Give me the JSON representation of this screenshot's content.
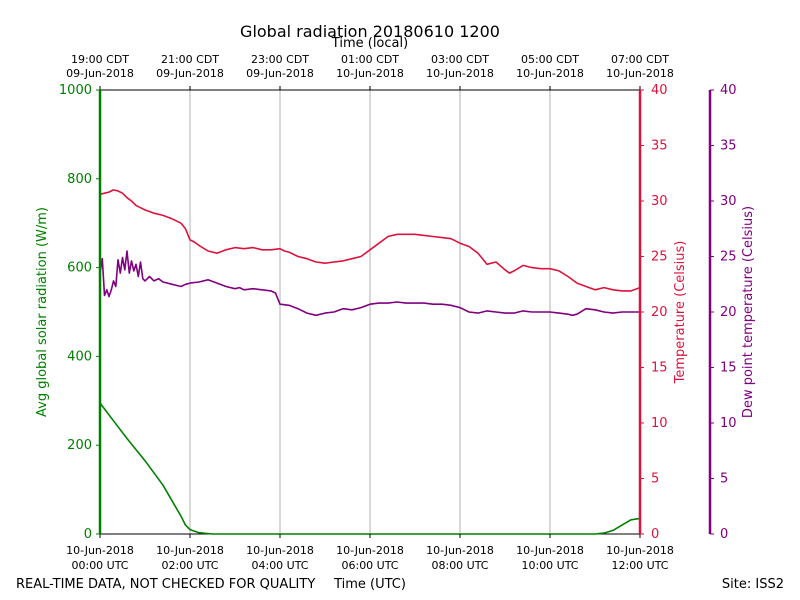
{
  "chart_data": {
    "type": "line",
    "title": "Global radiation 20180610 1200",
    "top_axis_label": "Time (local)",
    "xlabel": "Time (UTC)",
    "footer_left": "REAL-TIME DATA, NOT CHECKED FOR QUALITY",
    "footer_right": "Site: ISS2",
    "x_range_hours_utc": [
      0,
      12
    ],
    "bottom_ticks": [
      {
        "h": 0,
        "line1": "10-Jun-2018",
        "line2": "00:00 UTC"
      },
      {
        "h": 2,
        "line1": "10-Jun-2018",
        "line2": "02:00 UTC"
      },
      {
        "h": 4,
        "line1": "10-Jun-2018",
        "line2": "04:00 UTC"
      },
      {
        "h": 6,
        "line1": "10-Jun-2018",
        "line2": "06:00 UTC"
      },
      {
        "h": 8,
        "line1": "10-Jun-2018",
        "line2": "08:00 UTC"
      },
      {
        "h": 10,
        "line1": "10-Jun-2018",
        "line2": "10:00 UTC"
      },
      {
        "h": 12,
        "line1": "10-Jun-2018",
        "line2": "12:00 UTC"
      }
    ],
    "top_ticks": [
      {
        "h": 0,
        "line1": "19:00 CDT",
        "line2": "09-Jun-2018"
      },
      {
        "h": 2,
        "line1": "21:00 CDT",
        "line2": "09-Jun-2018"
      },
      {
        "h": 4,
        "line1": "23:00 CDT",
        "line2": "09-Jun-2018"
      },
      {
        "h": 6,
        "line1": "01:00 CDT",
        "line2": "10-Jun-2018"
      },
      {
        "h": 8,
        "line1": "03:00 CDT",
        "line2": "10-Jun-2018"
      },
      {
        "h": 10,
        "line1": "05:00 CDT",
        "line2": "10-Jun-2018"
      },
      {
        "h": 12,
        "line1": "07:00 CDT",
        "line2": "10-Jun-2018"
      }
    ],
    "axes": {
      "left": {
        "label": "Avg global solar radiation (W/m)",
        "ylim": [
          0,
          1000
        ],
        "ticks": [
          0,
          200,
          400,
          600,
          800,
          1000
        ],
        "color": "#008000"
      },
      "right1": {
        "label": "Temperature (Celsius)",
        "ylim": [
          0,
          40
        ],
        "ticks": [
          0,
          5,
          10,
          15,
          20,
          25,
          30,
          35,
          40
        ],
        "color": "#dc143c"
      },
      "right2": {
        "label": "Dew point temperature (Celsius)",
        "ylim": [
          0,
          40
        ],
        "ticks": [
          0,
          5,
          10,
          15,
          20,
          25,
          30,
          35,
          40
        ],
        "color": "#800080"
      }
    },
    "series": [
      {
        "name": "Avg global solar radiation",
        "axis": "left",
        "color": "#008000",
        "x": [
          0,
          0.3,
          0.6,
          1.0,
          1.4,
          1.6,
          1.8,
          1.9,
          2.0,
          2.2,
          2.5,
          4,
          6,
          8,
          10,
          11.0,
          11.2,
          11.4,
          11.6,
          11.8,
          12.0
        ],
        "values": [
          295,
          255,
          215,
          165,
          110,
          75,
          40,
          20,
          10,
          3,
          0,
          0,
          0,
          0,
          0,
          0,
          2,
          8,
          20,
          32,
          35
        ]
      },
      {
        "name": "Temperature",
        "axis": "right1",
        "color": "#dc143c",
        "x": [
          0,
          0.1,
          0.2,
          0.3,
          0.4,
          0.5,
          0.6,
          0.7,
          0.8,
          0.9,
          1.0,
          1.2,
          1.4,
          1.6,
          1.8,
          1.9,
          2.0,
          2.1,
          2.2,
          2.4,
          2.6,
          2.8,
          3.0,
          3.2,
          3.4,
          3.6,
          3.8,
          4.0,
          4.1,
          4.2,
          4.4,
          4.6,
          4.8,
          5.0,
          5.2,
          5.4,
          5.6,
          5.8,
          6.0,
          6.2,
          6.4,
          6.6,
          6.8,
          7.0,
          7.2,
          7.4,
          7.6,
          7.8,
          8.0,
          8.2,
          8.4,
          8.6,
          8.8,
          9.0,
          9.1,
          9.2,
          9.4,
          9.6,
          9.8,
          10.0,
          10.2,
          10.4,
          10.6,
          10.8,
          11.0,
          11.2,
          11.4,
          11.6,
          11.8,
          12.0
        ],
        "values": [
          30.6,
          30.7,
          30.8,
          31.0,
          30.9,
          30.7,
          30.3,
          30.0,
          29.6,
          29.4,
          29.2,
          28.9,
          28.7,
          28.4,
          28.0,
          27.5,
          26.5,
          26.3,
          26.0,
          25.5,
          25.3,
          25.6,
          25.8,
          25.7,
          25.8,
          25.6,
          25.6,
          25.7,
          25.5,
          25.4,
          25.0,
          24.8,
          24.5,
          24.4,
          24.5,
          24.6,
          24.8,
          25.0,
          25.6,
          26.2,
          26.8,
          27.0,
          27.0,
          27.0,
          26.9,
          26.8,
          26.7,
          26.6,
          26.2,
          25.9,
          25.3,
          24.3,
          24.5,
          23.8,
          23.5,
          23.7,
          24.2,
          24.0,
          23.9,
          23.9,
          23.7,
          23.2,
          22.6,
          22.3,
          22.0,
          22.2,
          22.0,
          21.9,
          21.9,
          22.2
        ]
      },
      {
        "name": "Dew point temperature",
        "axis": "right2",
        "color": "#800080",
        "x": [
          0,
          0.05,
          0.1,
          0.15,
          0.2,
          0.25,
          0.3,
          0.35,
          0.4,
          0.45,
          0.5,
          0.55,
          0.6,
          0.65,
          0.7,
          0.75,
          0.8,
          0.85,
          0.9,
          0.95,
          1.0,
          1.1,
          1.2,
          1.3,
          1.4,
          1.5,
          1.6,
          1.7,
          1.8,
          1.9,
          2.0,
          2.2,
          2.4,
          2.6,
          2.8,
          3.0,
          3.1,
          3.2,
          3.4,
          3.6,
          3.8,
          3.9,
          4.0,
          4.2,
          4.4,
          4.6,
          4.8,
          5.0,
          5.2,
          5.4,
          5.6,
          5.8,
          6.0,
          6.2,
          6.4,
          6.6,
          6.8,
          7.0,
          7.2,
          7.4,
          7.6,
          7.8,
          8.0,
          8.1,
          8.2,
          8.4,
          8.6,
          8.8,
          9.0,
          9.2,
          9.4,
          9.6,
          9.8,
          10.0,
          10.2,
          10.4,
          10.5,
          10.6,
          10.8,
          11.0,
          11.2,
          11.4,
          11.6,
          11.8,
          12.0
        ],
        "values": [
          23.5,
          24.8,
          21.5,
          22.0,
          21.4,
          22.0,
          22.8,
          22.3,
          24.7,
          23.5,
          24.9,
          23.8,
          25.5,
          23.5,
          24.6,
          23.7,
          24.3,
          23.2,
          24.5,
          23.0,
          22.8,
          23.2,
          22.8,
          23.0,
          22.7,
          22.6,
          22.5,
          22.4,
          22.3,
          22.5,
          22.6,
          22.7,
          22.9,
          22.6,
          22.3,
          22.1,
          22.2,
          22.0,
          22.1,
          22.0,
          21.9,
          21.7,
          20.7,
          20.6,
          20.3,
          19.9,
          19.7,
          19.9,
          20.0,
          20.3,
          20.2,
          20.4,
          20.7,
          20.8,
          20.8,
          20.9,
          20.8,
          20.8,
          20.8,
          20.7,
          20.7,
          20.6,
          20.4,
          20.2,
          20.0,
          19.9,
          20.1,
          20.0,
          19.9,
          19.9,
          20.1,
          20.0,
          20.0,
          20.0,
          19.9,
          19.8,
          19.7,
          19.8,
          20.3,
          20.2,
          20.0,
          19.9,
          20.0,
          20.0,
          20.0
        ]
      }
    ]
  }
}
